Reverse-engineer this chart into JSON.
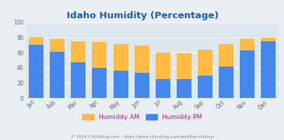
{
  "months": [
    "Jan",
    "Feb",
    "Mar",
    "Apr",
    "May",
    "Jun",
    "Jul",
    "Aug",
    "Sep",
    "Oct",
    "Nov",
    "Dec"
  ],
  "humidity_pm": [
    70,
    61,
    47,
    40,
    36,
    33,
    25,
    25,
    30,
    42,
    63,
    75
  ],
  "humidity_am_total": [
    81,
    79,
    75,
    74,
    71,
    69,
    60,
    59,
    64,
    71,
    79,
    80
  ],
  "title": "Idaho Humidity (Percentage)",
  "title_color": "#1a5fa8",
  "am_color": "#ffbb44",
  "pm_color": "#4488ee",
  "bg_color": "#e8eef4",
  "plot_bg": "#dce7ee",
  "ylabel_vals": [
    0,
    20,
    40,
    60,
    80,
    100
  ],
  "ylim": [
    0,
    100
  ],
  "legend_am": "Humidity AM",
  "legend_pm": "Humidity PM",
  "legend_label_color": "#cc1177",
  "footer": "© 2024 CityRating.com - https://www.cityrating.com/weather-history/",
  "footer_color": "#888888",
  "grid_color": "#ffffff",
  "tick_color": "#666666"
}
